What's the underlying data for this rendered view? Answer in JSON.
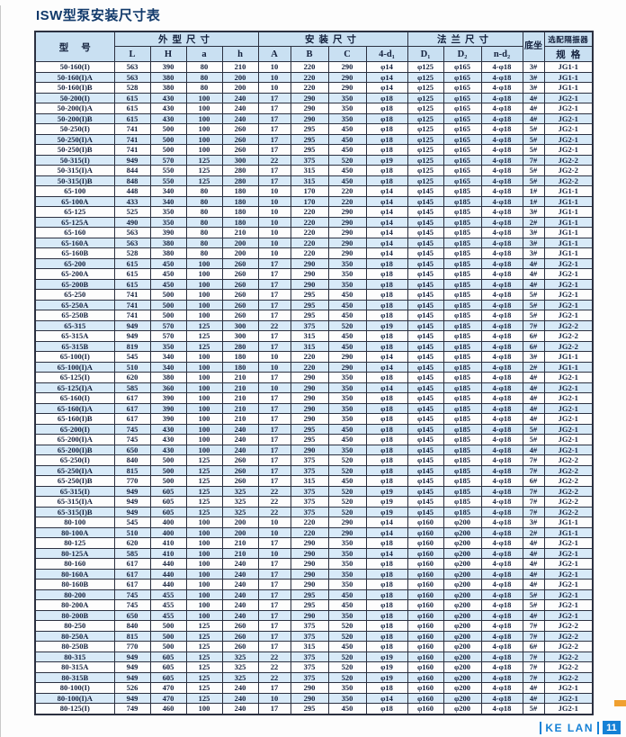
{
  "title": "ISW型泵安装尺寸表",
  "table": {
    "groups": {
      "model": "型号",
      "outer": "外型尺寸",
      "install": "安装尺寸",
      "flange": "法兰尺寸",
      "base": "底坐",
      "isolator": "选配隔振器",
      "spec": "规格"
    },
    "sub_headers": [
      "L",
      "H",
      "a",
      "h",
      "A",
      "B",
      "C",
      "4-d₁",
      "D₁",
      "D₂",
      "n-d₂"
    ],
    "rows": [
      [
        "50-160(I)",
        "563",
        "390",
        "80",
        "210",
        "10",
        "220",
        "290",
        "φ14",
        "φ125",
        "φ165",
        "4-φ18",
        "3#",
        "JG1-1"
      ],
      [
        "50-160(I)A",
        "563",
        "380",
        "80",
        "200",
        "10",
        "220",
        "290",
        "φ14",
        "φ125",
        "φ165",
        "4-φ18",
        "3#",
        "JG1-1"
      ],
      [
        "50-160(I)B",
        "528",
        "380",
        "80",
        "200",
        "10",
        "220",
        "290",
        "φ14",
        "φ125",
        "φ165",
        "4-φ18",
        "3#",
        "JG1-1"
      ],
      [
        "50-200(I)",
        "615",
        "430",
        "100",
        "240",
        "17",
        "290",
        "350",
        "φ18",
        "φ125",
        "φ165",
        "4-φ18",
        "4#",
        "JG2-1"
      ],
      [
        "50-200(I)A",
        "615",
        "430",
        "100",
        "240",
        "17",
        "290",
        "350",
        "φ18",
        "φ125",
        "φ165",
        "4-φ18",
        "4#",
        "JG2-1"
      ],
      [
        "50-200(I)B",
        "615",
        "430",
        "100",
        "240",
        "17",
        "290",
        "350",
        "φ18",
        "φ125",
        "φ165",
        "4-φ18",
        "4#",
        "JG2-1"
      ],
      [
        "50-250(I)",
        "741",
        "500",
        "100",
        "260",
        "17",
        "295",
        "450",
        "φ18",
        "φ125",
        "φ165",
        "4-φ18",
        "5#",
        "JG2-1"
      ],
      [
        "50-250(I)A",
        "741",
        "500",
        "100",
        "260",
        "17",
        "295",
        "450",
        "φ18",
        "φ125",
        "φ165",
        "4-φ18",
        "5#",
        "JG2-1"
      ],
      [
        "50-250(I)B",
        "741",
        "500",
        "100",
        "260",
        "17",
        "295",
        "450",
        "φ18",
        "φ125",
        "φ165",
        "4-φ18",
        "5#",
        "JG2-1"
      ],
      [
        "50-315(I)",
        "949",
        "570",
        "125",
        "300",
        "22",
        "375",
        "520",
        "φ19",
        "φ125",
        "φ165",
        "4-φ18",
        "7#",
        "JG2-2"
      ],
      [
        "50-315(I)A",
        "844",
        "550",
        "125",
        "280",
        "17",
        "315",
        "450",
        "φ18",
        "φ125",
        "φ165",
        "4-φ18",
        "5#",
        "JG2-2"
      ],
      [
        "50-315(I)B",
        "848",
        "550",
        "125",
        "280",
        "17",
        "315",
        "450",
        "φ18",
        "φ125",
        "φ165",
        "4-φ18",
        "5#",
        "JG2-2"
      ],
      [
        "65-100",
        "448",
        "340",
        "80",
        "180",
        "10",
        "170",
        "220",
        "φ14",
        "φ145",
        "φ185",
        "4-φ18",
        "1#",
        "JG1-1"
      ],
      [
        "65-100A",
        "433",
        "340",
        "80",
        "180",
        "10",
        "170",
        "220",
        "φ14",
        "φ145",
        "φ185",
        "4-φ18",
        "1#",
        "JG1-1"
      ],
      [
        "65-125",
        "525",
        "350",
        "80",
        "180",
        "10",
        "220",
        "290",
        "φ14",
        "φ145",
        "φ185",
        "4-φ18",
        "3#",
        "JG1-1"
      ],
      [
        "65-125A",
        "490",
        "350",
        "80",
        "180",
        "10",
        "220",
        "290",
        "φ14",
        "φ145",
        "φ185",
        "4-φ18",
        "2#",
        "JG1-1"
      ],
      [
        "65-160",
        "563",
        "390",
        "80",
        "210",
        "10",
        "220",
        "290",
        "φ14",
        "φ145",
        "φ185",
        "4-φ18",
        "3#",
        "JG1-1"
      ],
      [
        "65-160A",
        "563",
        "380",
        "80",
        "200",
        "10",
        "220",
        "290",
        "φ14",
        "φ145",
        "φ185",
        "4-φ18",
        "3#",
        "JG1-1"
      ],
      [
        "65-160B",
        "528",
        "380",
        "80",
        "200",
        "10",
        "220",
        "290",
        "φ14",
        "φ145",
        "φ185",
        "4-φ18",
        "3#",
        "JG1-1"
      ],
      [
        "65-200",
        "615",
        "450",
        "100",
        "260",
        "17",
        "290",
        "350",
        "φ18",
        "φ145",
        "φ185",
        "4-φ18",
        "4#",
        "JG2-1"
      ],
      [
        "65-200A",
        "615",
        "450",
        "100",
        "260",
        "17",
        "290",
        "350",
        "φ18",
        "φ145",
        "φ185",
        "4-φ18",
        "4#",
        "JG2-1"
      ],
      [
        "65-200B",
        "615",
        "450",
        "100",
        "260",
        "17",
        "290",
        "350",
        "φ18",
        "φ145",
        "φ185",
        "4-φ18",
        "4#",
        "JG2-1"
      ],
      [
        "65-250",
        "741",
        "500",
        "100",
        "260",
        "17",
        "295",
        "450",
        "φ18",
        "φ145",
        "φ185",
        "4-φ18",
        "5#",
        "JG2-1"
      ],
      [
        "65-250A",
        "741",
        "500",
        "100",
        "260",
        "17",
        "295",
        "450",
        "φ18",
        "φ145",
        "φ185",
        "4-φ18",
        "5#",
        "JG2-1"
      ],
      [
        "65-250B",
        "741",
        "500",
        "100",
        "260",
        "17",
        "295",
        "450",
        "φ18",
        "φ145",
        "φ185",
        "4-φ18",
        "5#",
        "JG2-1"
      ],
      [
        "65-315",
        "949",
        "570",
        "125",
        "300",
        "22",
        "375",
        "520",
        "φ19",
        "φ145",
        "φ185",
        "4-φ18",
        "7#",
        "JG2-2"
      ],
      [
        "65-315A",
        "949",
        "570",
        "125",
        "300",
        "17",
        "315",
        "450",
        "φ18",
        "φ145",
        "φ185",
        "4-φ18",
        "6#",
        "JG2-2"
      ],
      [
        "65-315B",
        "819",
        "350",
        "125",
        "280",
        "17",
        "315",
        "450",
        "φ18",
        "φ145",
        "φ185",
        "4-φ18",
        "6#",
        "JG2-2"
      ],
      [
        "65-100(I)",
        "545",
        "340",
        "100",
        "180",
        "10",
        "220",
        "290",
        "φ14",
        "φ145",
        "φ185",
        "4-φ18",
        "3#",
        "JG1-1"
      ],
      [
        "65-100(I)A",
        "510",
        "340",
        "100",
        "180",
        "10",
        "220",
        "290",
        "φ14",
        "φ145",
        "φ185",
        "4-φ18",
        "2#",
        "JG1-1"
      ],
      [
        "65-125(I)",
        "620",
        "380",
        "100",
        "210",
        "17",
        "290",
        "350",
        "φ18",
        "φ145",
        "φ185",
        "4-φ18",
        "4#",
        "JG2-1"
      ],
      [
        "65-125(I)A",
        "585",
        "360",
        "100",
        "210",
        "10",
        "290",
        "350",
        "φ14",
        "φ145",
        "φ185",
        "4-φ18",
        "4#",
        "JG2-1"
      ],
      [
        "65-160(I)",
        "617",
        "390",
        "100",
        "210",
        "17",
        "290",
        "350",
        "φ18",
        "φ145",
        "φ185",
        "4-φ18",
        "4#",
        "JG2-1"
      ],
      [
        "65-160(I)A",
        "617",
        "390",
        "100",
        "210",
        "17",
        "290",
        "350",
        "φ18",
        "φ145",
        "φ185",
        "4-φ18",
        "4#",
        "JG2-1"
      ],
      [
        "65-160(I)B",
        "617",
        "390",
        "100",
        "210",
        "17",
        "290",
        "350",
        "φ18",
        "φ145",
        "φ185",
        "4-φ18",
        "4#",
        "JG2-1"
      ],
      [
        "65-200(I)",
        "745",
        "430",
        "100",
        "240",
        "17",
        "295",
        "450",
        "φ18",
        "φ145",
        "φ185",
        "4-φ18",
        "5#",
        "JG2-1"
      ],
      [
        "65-200(I)A",
        "745",
        "430",
        "100",
        "240",
        "17",
        "295",
        "450",
        "φ18",
        "φ145",
        "φ185",
        "4-φ18",
        "5#",
        "JG2-1"
      ],
      [
        "65-200(I)B",
        "650",
        "430",
        "100",
        "240",
        "17",
        "290",
        "350",
        "φ18",
        "φ145",
        "φ185",
        "4-φ18",
        "4#",
        "JG2-1"
      ],
      [
        "65-250(I)",
        "840",
        "500",
        "125",
        "260",
        "17",
        "375",
        "520",
        "φ18",
        "φ145",
        "φ185",
        "4-φ18",
        "7#",
        "JG2-2"
      ],
      [
        "65-250(I)A",
        "815",
        "500",
        "125",
        "260",
        "17",
        "375",
        "520",
        "φ18",
        "φ145",
        "φ185",
        "4-φ18",
        "7#",
        "JG2-2"
      ],
      [
        "65-250(I)B",
        "770",
        "500",
        "125",
        "260",
        "17",
        "315",
        "450",
        "φ18",
        "φ145",
        "φ185",
        "4-φ18",
        "6#",
        "JG2-2"
      ],
      [
        "65-315(I)",
        "949",
        "605",
        "125",
        "325",
        "22",
        "375",
        "520",
        "φ19",
        "φ145",
        "φ185",
        "4-φ18",
        "7#",
        "JG2-2"
      ],
      [
        "65-315(I)A",
        "949",
        "605",
        "125",
        "325",
        "22",
        "375",
        "520",
        "φ19",
        "φ145",
        "φ185",
        "4-φ18",
        "7#",
        "JG2-2"
      ],
      [
        "65-315(I)B",
        "949",
        "605",
        "125",
        "325",
        "22",
        "375",
        "520",
        "φ19",
        "φ145",
        "φ185",
        "4-φ18",
        "7#",
        "JG2-2"
      ],
      [
        "80-100",
        "545",
        "400",
        "100",
        "200",
        "10",
        "220",
        "290",
        "φ14",
        "φ160",
        "φ200",
        "4-φ18",
        "3#",
        "JG1-1"
      ],
      [
        "80-100A",
        "510",
        "400",
        "100",
        "200",
        "10",
        "220",
        "290",
        "φ14",
        "φ160",
        "φ200",
        "4-φ18",
        "2#",
        "JG1-1"
      ],
      [
        "80-125",
        "620",
        "410",
        "100",
        "210",
        "17",
        "290",
        "350",
        "φ18",
        "φ160",
        "φ200",
        "4-φ18",
        "4#",
        "JG2-1"
      ],
      [
        "80-125A",
        "585",
        "410",
        "100",
        "210",
        "10",
        "290",
        "350",
        "φ14",
        "φ160",
        "φ200",
        "4-φ18",
        "4#",
        "JG2-1"
      ],
      [
        "80-160",
        "617",
        "440",
        "100",
        "240",
        "17",
        "290",
        "350",
        "φ18",
        "φ160",
        "φ200",
        "4-φ18",
        "4#",
        "JG2-1"
      ],
      [
        "80-160A",
        "617",
        "440",
        "100",
        "240",
        "17",
        "290",
        "350",
        "φ18",
        "φ160",
        "φ200",
        "4-φ18",
        "4#",
        "JG2-1"
      ],
      [
        "80-160B",
        "617",
        "440",
        "100",
        "240",
        "17",
        "290",
        "350",
        "φ18",
        "φ160",
        "φ200",
        "4-φ18",
        "4#",
        "JG2-1"
      ],
      [
        "80-200",
        "745",
        "455",
        "100",
        "240",
        "17",
        "295",
        "450",
        "φ18",
        "φ160",
        "φ200",
        "4-φ18",
        "5#",
        "JG2-1"
      ],
      [
        "80-200A",
        "745",
        "455",
        "100",
        "240",
        "17",
        "295",
        "450",
        "φ18",
        "φ160",
        "φ200",
        "4-φ18",
        "5#",
        "JG2-1"
      ],
      [
        "80-200B",
        "650",
        "455",
        "100",
        "240",
        "17",
        "290",
        "350",
        "φ18",
        "φ160",
        "φ200",
        "4-φ18",
        "4#",
        "JG2-1"
      ],
      [
        "80-250",
        "840",
        "500",
        "125",
        "260",
        "17",
        "375",
        "520",
        "φ18",
        "φ160",
        "φ200",
        "4-φ18",
        "7#",
        "JG2-2"
      ],
      [
        "80-250A",
        "815",
        "500",
        "125",
        "260",
        "17",
        "375",
        "520",
        "φ18",
        "φ160",
        "φ200",
        "4-φ18",
        "7#",
        "JG2-2"
      ],
      [
        "80-250B",
        "770",
        "500",
        "125",
        "260",
        "17",
        "315",
        "450",
        "φ18",
        "φ160",
        "φ200",
        "4-φ18",
        "6#",
        "JG2-2"
      ],
      [
        "80-315",
        "949",
        "605",
        "125",
        "325",
        "22",
        "375",
        "520",
        "φ19",
        "φ160",
        "φ200",
        "4-φ18",
        "7#",
        "JG2-2"
      ],
      [
        "80-315A",
        "949",
        "605",
        "125",
        "325",
        "22",
        "375",
        "520",
        "φ19",
        "φ160",
        "φ200",
        "4-φ18",
        "7#",
        "JG2-2"
      ],
      [
        "80-315B",
        "949",
        "605",
        "125",
        "325",
        "22",
        "375",
        "520",
        "φ19",
        "φ160",
        "φ200",
        "4-φ18",
        "7#",
        "JG2-2"
      ],
      [
        "80-100(I)",
        "526",
        "470",
        "125",
        "240",
        "17",
        "290",
        "350",
        "φ18",
        "φ160",
        "φ200",
        "4-φ18",
        "4#",
        "JG2-1"
      ],
      [
        "80-100(I)A",
        "949",
        "470",
        "125",
        "240",
        "10",
        "290",
        "350",
        "φ14",
        "φ160",
        "φ200",
        "4-φ18",
        "4#",
        "JG2-1"
      ],
      [
        "80-125(I)",
        "749",
        "460",
        "100",
        "240",
        "17",
        "295",
        "450",
        "φ18",
        "φ160",
        "φ200",
        "4-φ18",
        "5#",
        "JG2-1"
      ]
    ]
  },
  "footer": {
    "brand": "KE LAN",
    "page": "11"
  },
  "colors": {
    "header_bg": "#c9e0f2",
    "row_alt_bg": "#d8eaf8",
    "border": "#2b3040",
    "title": "#123a6b",
    "brand_blue": "#1581d6",
    "accent_orange": "#f0a030",
    "text": "#14213d"
  }
}
